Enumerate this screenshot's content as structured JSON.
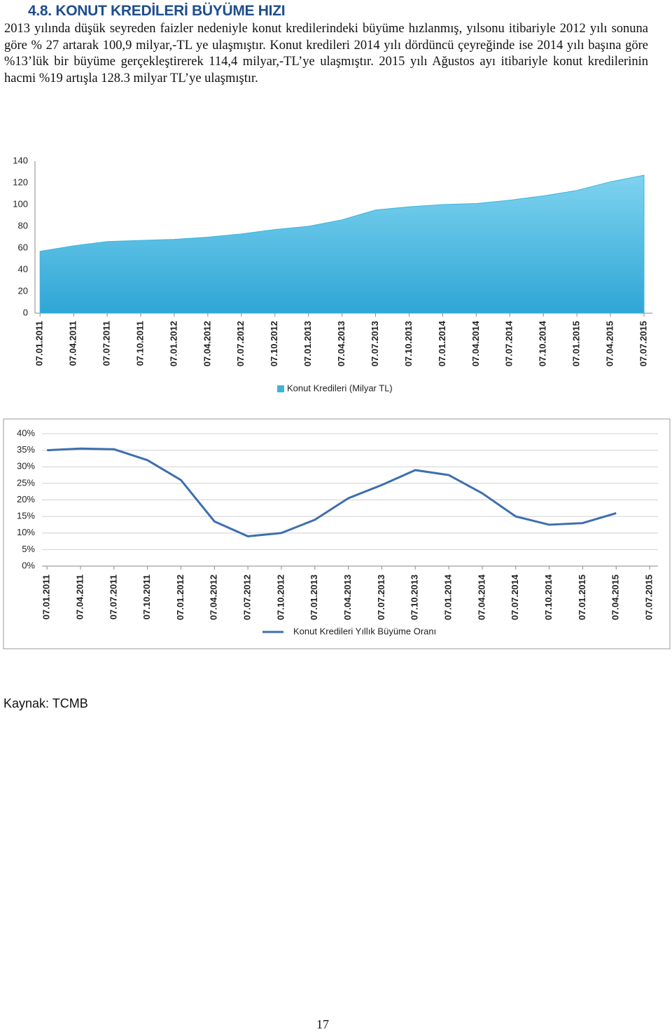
{
  "header": {
    "title": "4.8. KONUT KREDİLERİ BÜYÜME HIZI"
  },
  "paragraph": "2013 yılında düşük seyreden faizler nedeniyle konut kredilerindeki büyüme hızlanmış, yılsonu itibariyle 2012 yılı sonuna göre % 27 artarak 100,9 milyar,-TL ye ulaşmıştır. Konut kredileri 2014 yılı dördüncü çeyreğinde ise 2014 yılı başına göre %13’lük bir büyüme gerçekleştirerek 114,4 milyar,-TL’ye ulaşmıştır. 2015 yılı Ağustos ayı itibariyle konut kredilerinin hacmi %19 artışla 128.3 milyar TL’ye ulaşmıştır.",
  "chart_data": [
    {
      "type": "area",
      "categories": [
        "07.01.2011",
        "07.04.2011",
        "07.07.2011",
        "07.10.2011",
        "07.01.2012",
        "07.04.2012",
        "07.07.2012",
        "07.10.2012",
        "07.01.2013",
        "07.04.2013",
        "07.07.2013",
        "07.10.2013",
        "07.01.2014",
        "07.04.2014",
        "07.07.2014",
        "07.10.2014",
        "07.01.2015",
        "07.04.2015",
        "07.07.2015"
      ],
      "series": [
        {
          "name": "Konut Kredileri (Milyar TL)",
          "color": "#3cb4dc",
          "values": [
            57,
            62,
            66,
            67,
            68,
            70,
            73,
            77,
            80,
            86,
            95,
            98,
            100,
            101,
            104,
            108,
            113,
            121,
            127
          ]
        }
      ],
      "ylim": [
        0,
        140
      ],
      "yticks": [
        0,
        20,
        40,
        60,
        80,
        100,
        120,
        140
      ],
      "legend": "bottom"
    },
    {
      "type": "line",
      "categories": [
        "07.01.2011",
        "07.04.2011",
        "07.07.2011",
        "07.10.2011",
        "07.01.2012",
        "07.04.2012",
        "07.07.2012",
        "07.10.2012",
        "07.01.2013",
        "07.04.2013",
        "07.07.2013",
        "07.10.2013",
        "07.01.2014",
        "07.04.2014",
        "07.07.2014",
        "07.10.2014",
        "07.01.2015",
        "07.04.2015",
        "07.07.2015"
      ],
      "series": [
        {
          "name": "Konut Kredileri Yıllık Büyüme Oranı",
          "color": "#3d6fae",
          "values": [
            35,
            35.5,
            35.3,
            32,
            26,
            13.5,
            9,
            10,
            14,
            20.5,
            24.5,
            29,
            27.5,
            22,
            15,
            12.5,
            13,
            16,
            null
          ]
        }
      ],
      "ylim": [
        0,
        40
      ],
      "yticks": [
        {
          "value": 0,
          "label": "0%"
        },
        {
          "value": 5,
          "label": "5%"
        },
        {
          "value": 10,
          "label": "10%"
        },
        {
          "value": 15,
          "label": "15%"
        },
        {
          "value": 20,
          "label": "20%"
        },
        {
          "value": 25,
          "label": "25%"
        },
        {
          "value": 30,
          "label": "30%"
        },
        {
          "value": 35,
          "label": "35%"
        },
        {
          "value": 40,
          "label": "40%"
        }
      ],
      "grid": true,
      "legend": "bottom"
    }
  ],
  "source": "Kaynak: TCMB",
  "page_number": "17"
}
